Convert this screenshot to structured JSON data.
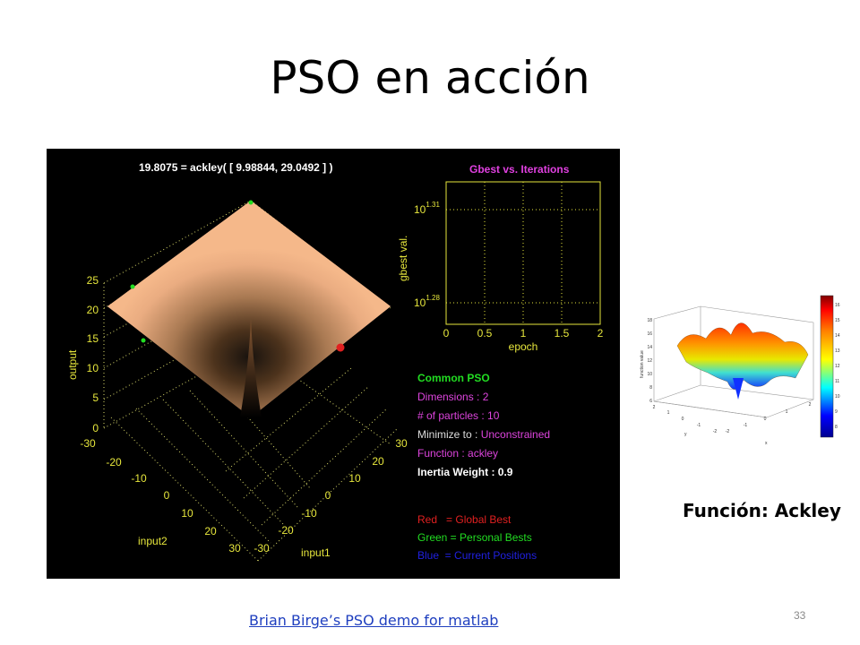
{
  "slide": {
    "title": "PSO en acción",
    "caption": "Función: Ackley",
    "link_text": "Brian Birge’s PSO demo for matlab",
    "page_number": "33"
  },
  "demo": {
    "equation": "19.8075 = ackley( [   9.98844,    29.0492 ] )",
    "surface_color": "#f5b88a",
    "output_axis": {
      "label": "output",
      "ticks": [
        "25",
        "20",
        "15",
        "10",
        "5",
        "0"
      ]
    },
    "input2_axis": {
      "label": "input2",
      "ticks": [
        "-30",
        "-20",
        "-10",
        "0",
        "10",
        "20",
        "30"
      ]
    },
    "input1_axis": {
      "label": "input1",
      "ticks": [
        "-30",
        "-20",
        "-10",
        "0",
        "10",
        "20",
        "30"
      ]
    },
    "gbest_plot": {
      "title": "Gbest vs. Iterations",
      "ylabel": "gbest val.",
      "xlabel": "epoch",
      "xticks": [
        "0",
        "0.5",
        "1",
        "1.5",
        "2"
      ],
      "yticks": [
        {
          "base": "10",
          "exp": "1.31"
        },
        {
          "base": "10",
          "exp": "1.28"
        }
      ]
    },
    "info": {
      "heading": "Common PSO",
      "dimensions": "Dimensions : 2",
      "particles": "# of particles : 10",
      "minimize_label": "Minimize to : ",
      "minimize_value": "Unconstrained",
      "function": "Function : ackley",
      "inertia": "Inertia Weight : 0.9"
    },
    "key": {
      "red": "Red   = Global Best",
      "green": "Green = Personal Bests",
      "blue": "Blue  = Current Positions"
    },
    "colors": {
      "yellow": "#e6e63c",
      "title_magenta": "#e040e0",
      "green": "#22dd22",
      "magenta": "#dd44dd",
      "red": "#e02020",
      "blue": "#2020e0"
    }
  },
  "thumbnail": {
    "zlabel": "function value",
    "colorbar_ticks": [
      "16",
      "15",
      "14",
      "13",
      "12",
      "11",
      "10",
      "9",
      "8"
    ],
    "z_ticks": [
      "18",
      "16",
      "14",
      "12",
      "10",
      "8",
      "6"
    ],
    "y_label": "y",
    "x_label": "x",
    "y_ticks": [
      "2",
      "1",
      "0",
      "-1",
      "-2"
    ],
    "x_ticks": [
      "-2",
      "-1",
      "0",
      "1",
      "2"
    ]
  }
}
